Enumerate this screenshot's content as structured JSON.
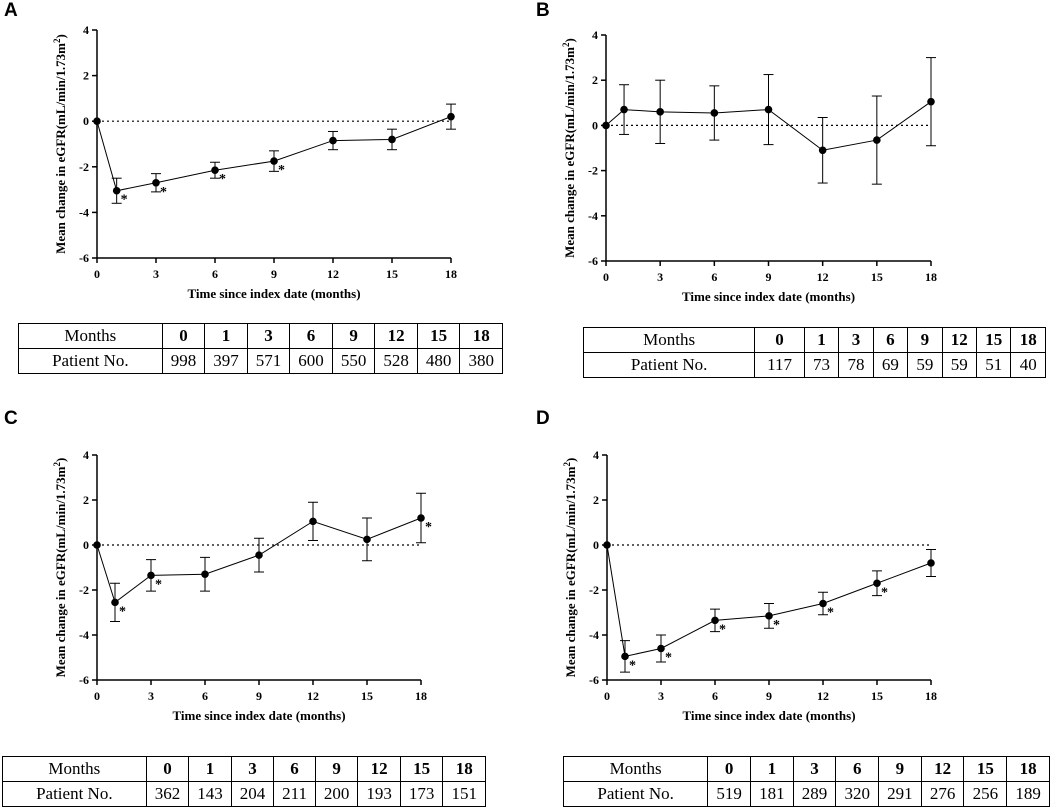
{
  "panels": [
    {
      "letter": "A",
      "chart_data": {
        "type": "line",
        "xlabel": "Time since index date (months)",
        "ylabel": "Mean change in eGFR(mL/min/1.73m",
        "ylabel_sup": "2",
        "ylabel_close": ")",
        "x_ticks": [
          "0",
          "3",
          "6",
          "9",
          "12",
          "15",
          "18"
        ],
        "y_ticks": [
          "4",
          "2",
          "0",
          "-2",
          "-4",
          "-6"
        ],
        "xlim": [
          0,
          18
        ],
        "ylim": [
          -6,
          4
        ],
        "reference_line": 0,
        "x": [
          0,
          1,
          3,
          6,
          9,
          12,
          15,
          18
        ],
        "y": [
          0,
          -3.05,
          -2.7,
          -2.15,
          -1.75,
          -0.85,
          -0.8,
          0.2
        ],
        "err": [
          0,
          0.55,
          0.4,
          0.35,
          0.45,
          0.4,
          0.45,
          0.55
        ],
        "significant": [
          false,
          true,
          true,
          true,
          true,
          false,
          false,
          false
        ],
        "star": "*"
      },
      "table": {
        "header_label": "Months",
        "row_label": "Patient No.",
        "months": [
          "0",
          "1",
          "3",
          "6",
          "9",
          "12",
          "15",
          "18"
        ],
        "patients": [
          "998",
          "397",
          "571",
          "600",
          "550",
          "528",
          "480",
          "380"
        ]
      }
    },
    {
      "letter": "B",
      "chart_data": {
        "type": "line",
        "xlabel": "Time since index date (months)",
        "ylabel": "Mean change in eGFR(mL/min/1.73m",
        "ylabel_sup": "2",
        "ylabel_close": ")",
        "x_ticks": [
          "0",
          "3",
          "6",
          "9",
          "12",
          "15",
          "18"
        ],
        "y_ticks": [
          "4",
          "2",
          "0",
          "-2",
          "-4",
          "-6"
        ],
        "xlim": [
          0,
          18
        ],
        "ylim": [
          -6,
          4
        ],
        "reference_line": 0,
        "x": [
          0,
          1,
          3,
          6,
          9,
          12,
          15,
          18
        ],
        "y": [
          0,
          0.7,
          0.6,
          0.55,
          0.7,
          -1.1,
          -0.65,
          1.05
        ],
        "err": [
          0,
          1.1,
          1.4,
          1.2,
          1.55,
          1.45,
          1.95,
          1.95
        ],
        "significant": [
          false,
          false,
          false,
          false,
          false,
          false,
          false,
          false
        ],
        "star": "*"
      },
      "table": {
        "header_label": "Months",
        "row_label": "Patient No.",
        "months": [
          "0",
          "1",
          "3",
          "6",
          "9",
          "12",
          "15",
          "18"
        ],
        "patients": [
          "117",
          "73",
          "78",
          "69",
          "59",
          "59",
          "51",
          "40"
        ]
      }
    },
    {
      "letter": "C",
      "chart_data": {
        "type": "line",
        "xlabel": "Time since index date (months)",
        "ylabel": "Mean change in eGFR(mL/min/1.73m",
        "ylabel_sup": "2",
        "ylabel_close": ")",
        "x_ticks": [
          "0",
          "3",
          "6",
          "9",
          "12",
          "15",
          "18"
        ],
        "y_ticks": [
          "4",
          "2",
          "0",
          "-2",
          "-4",
          "-6"
        ],
        "xlim": [
          0,
          18
        ],
        "ylim": [
          -6,
          4
        ],
        "reference_line": 0,
        "x": [
          0,
          1,
          3,
          6,
          9,
          12,
          15,
          18
        ],
        "y": [
          0,
          -2.55,
          -1.35,
          -1.3,
          -0.45,
          1.05,
          0.25,
          1.2
        ],
        "err": [
          0,
          0.85,
          0.7,
          0.75,
          0.75,
          0.85,
          0.95,
          1.1
        ],
        "significant": [
          false,
          true,
          true,
          false,
          false,
          false,
          false,
          true
        ],
        "star": "*"
      },
      "table": {
        "header_label": "Months",
        "row_label": "Patient No.",
        "months": [
          "0",
          "1",
          "3",
          "6",
          "9",
          "12",
          "15",
          "18"
        ],
        "patients": [
          "362",
          "143",
          "204",
          "211",
          "200",
          "193",
          "173",
          "151"
        ]
      }
    },
    {
      "letter": "D",
      "chart_data": {
        "type": "line",
        "xlabel": "Time since index date (months)",
        "ylabel": "Mean change in eGFR(mL/min/1.73m",
        "ylabel_sup": "2",
        "ylabel_close": ")",
        "x_ticks": [
          "0",
          "3",
          "6",
          "9",
          "12",
          "15",
          "18"
        ],
        "y_ticks": [
          "4",
          "2",
          "0",
          "-2",
          "-4",
          "-6"
        ],
        "xlim": [
          0,
          18
        ],
        "ylim": [
          -6,
          4
        ],
        "reference_line": 0,
        "x": [
          0,
          1,
          3,
          6,
          9,
          12,
          15,
          18
        ],
        "y": [
          0,
          -4.95,
          -4.6,
          -3.35,
          -3.15,
          -2.6,
          -1.7,
          -0.8
        ],
        "err": [
          0,
          0.7,
          0.6,
          0.5,
          0.55,
          0.5,
          0.55,
          0.6
        ],
        "significant": [
          false,
          true,
          true,
          true,
          true,
          true,
          true,
          false
        ],
        "star": "*"
      },
      "table": {
        "header_label": "Months",
        "row_label": "Patient No.",
        "months": [
          "0",
          "1",
          "3",
          "6",
          "9",
          "12",
          "15",
          "18"
        ],
        "patients": [
          "519",
          "181",
          "289",
          "320",
          "291",
          "276",
          "256",
          "189"
        ]
      }
    }
  ]
}
